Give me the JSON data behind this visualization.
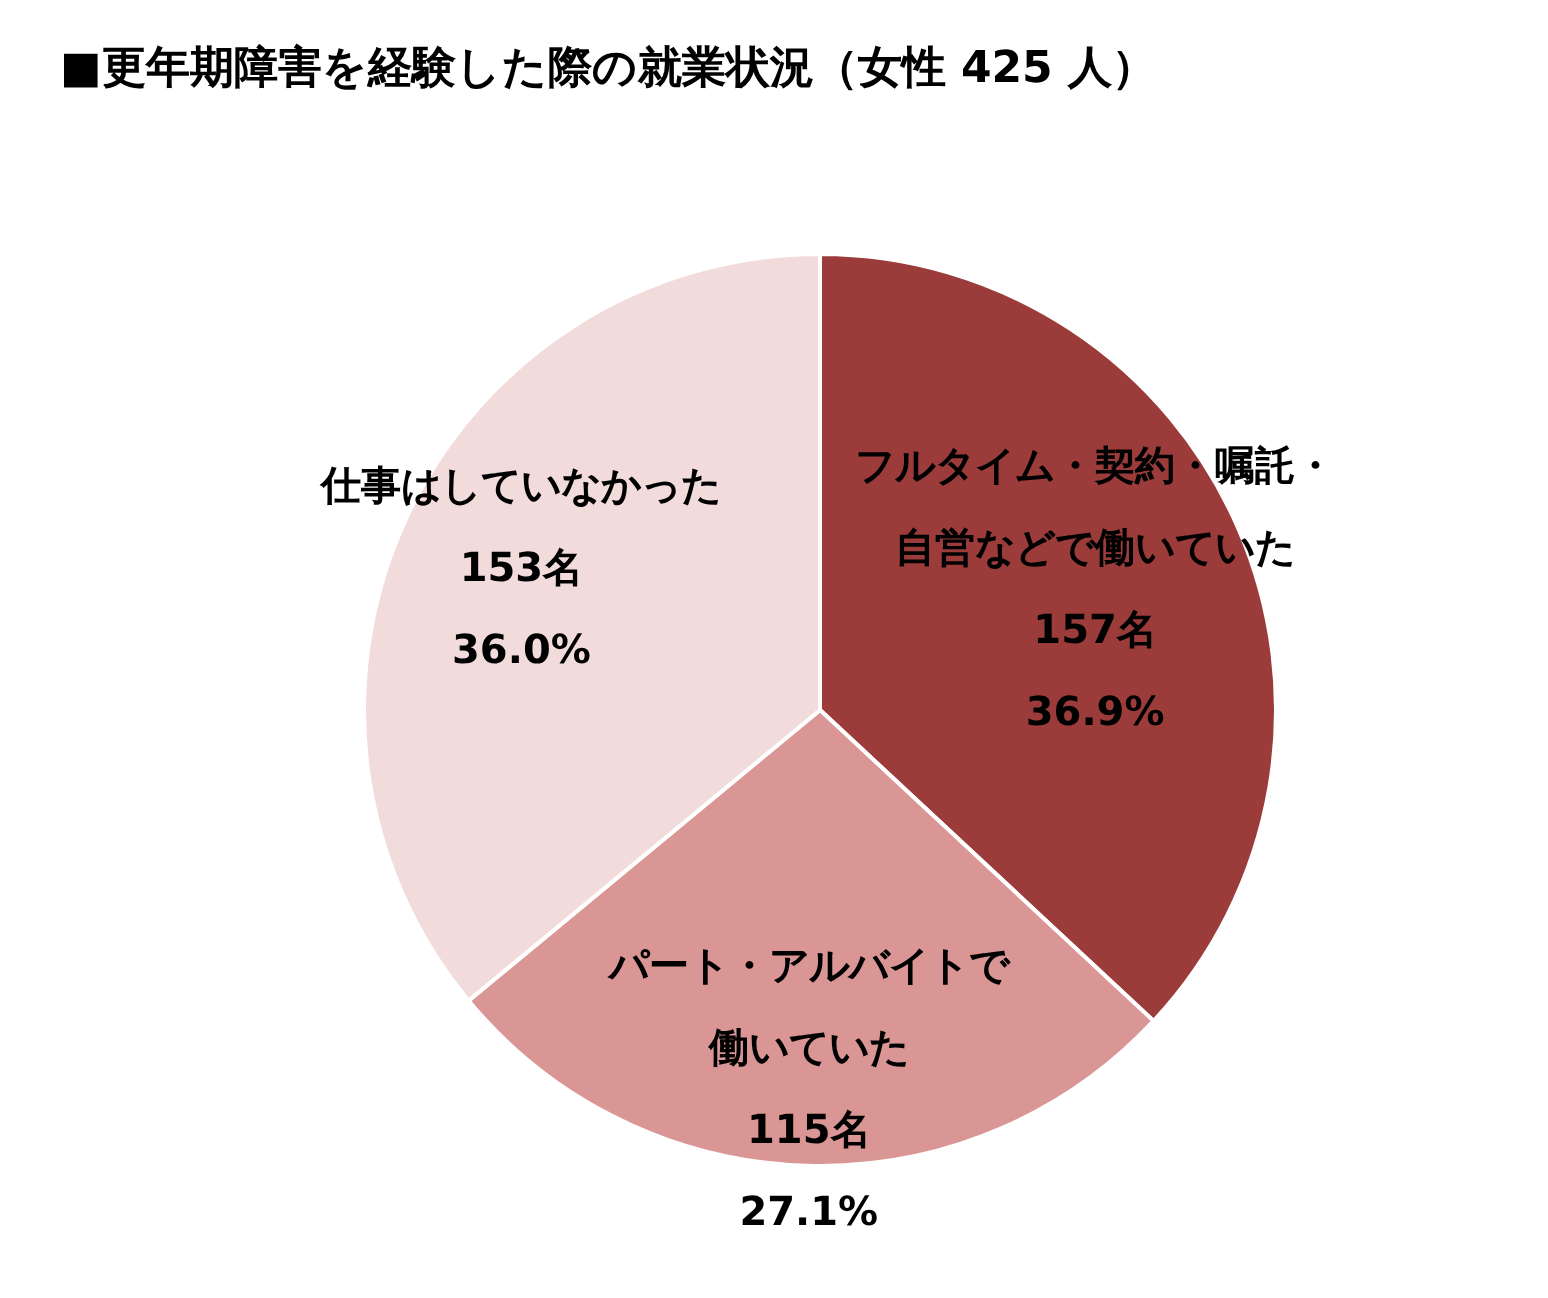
{
  "chart_data": {
    "type": "pie",
    "title": "■更年期障害を経験した際の就業状況（女性 425 人）",
    "categories": [
      "フルタイム・契約・嘱託・自営などで働いていた",
      "パート・アルバイトで働いていた",
      "仕事はしていなかった"
    ],
    "values": [
      157,
      115,
      153
    ],
    "value_labels": [
      "157名\n36.9%",
      "115名\n27.1%",
      "153名\n36.0%"
    ],
    "colors": [
      "#9b3c3b",
      "#d99694",
      "#f2dcdb"
    ],
    "legend": false
  }
}
